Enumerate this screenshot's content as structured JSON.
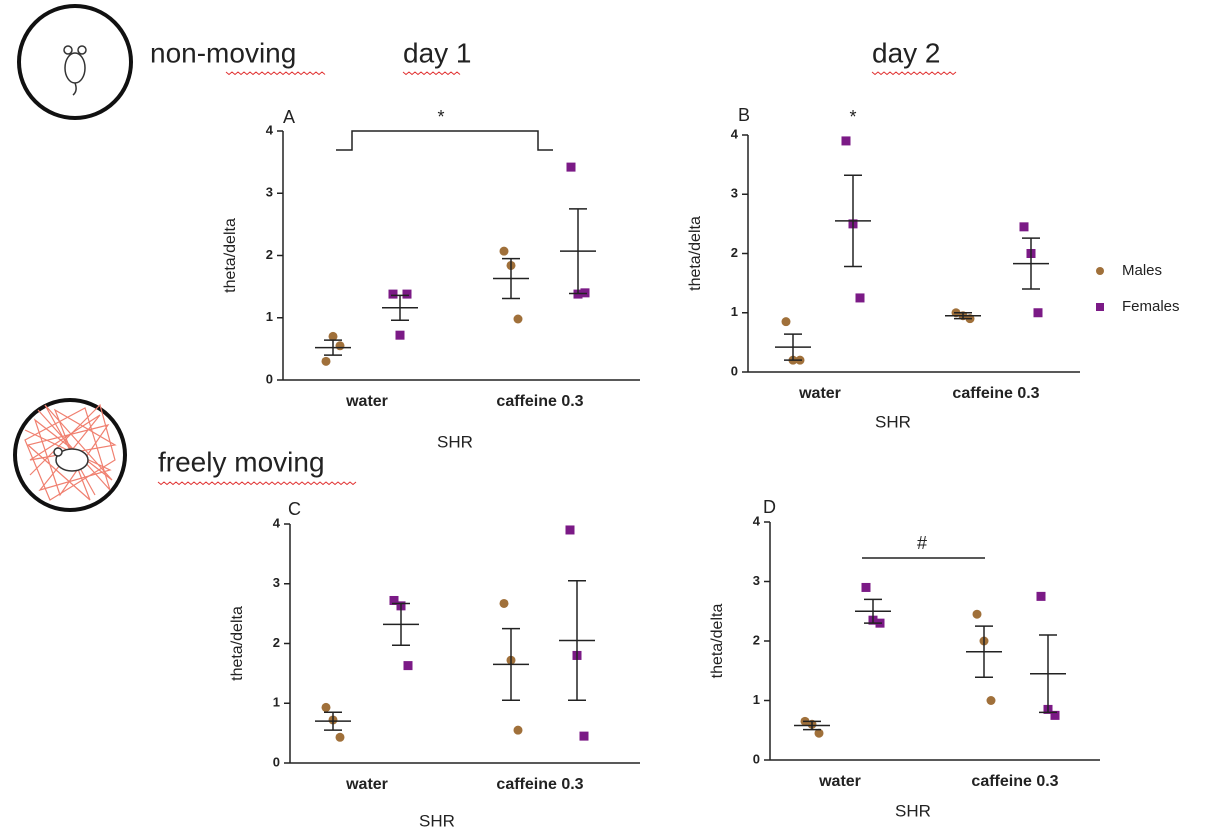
{
  "header": {
    "non_moving": "non-moving",
    "day1": "day 1",
    "day2": "day 2",
    "freely_moving": "freely moving"
  },
  "legend": [
    {
      "name": "Males",
      "color": "#a0703a",
      "marker": "circle"
    },
    {
      "name": "Females",
      "color": "#7b1a86",
      "marker": "square"
    }
  ],
  "chart_data": [
    {
      "type": "scatter",
      "panel": "A",
      "y_label": "theta/delta",
      "x_label": "SHR",
      "annotation": "*",
      "categories": [
        "water",
        "caffeine 0.3"
      ],
      "ylim": [
        0,
        4
      ],
      "yticks": [
        0,
        1,
        2,
        3,
        4
      ],
      "series": [
        {
          "values": [
            [
              0.3,
              0.7,
              0.55
            ],
            [
              2.07,
              1.84,
              0.98
            ]
          ],
          "mean": [
            0.52,
            1.63
          ],
          "sem": [
            0.12,
            0.32
          ]
        },
        {
          "values": [
            [
              1.38,
              0.72,
              1.38
            ],
            [
              3.42,
              1.38,
              1.4
            ]
          ],
          "mean": [
            1.16,
            2.07
          ],
          "sem": [
            0.2,
            0.68
          ]
        }
      ]
    },
    {
      "type": "scatter",
      "panel": "B",
      "y_label": "theta/delta",
      "x_label": "SHR",
      "annotation": "*",
      "categories": [
        "water",
        "caffeine 0.3"
      ],
      "ylim": [
        0,
        4
      ],
      "yticks": [
        0,
        1,
        2,
        3,
        4
      ],
      "series": [
        {
          "values": [
            [
              0.85,
              0.2,
              0.2
            ],
            [
              1.0,
              0.95,
              0.9
            ]
          ],
          "mean": [
            0.42,
            0.95
          ],
          "sem": [
            0.22,
            0.05
          ]
        },
        {
          "values": [
            [
              3.9,
              2.5,
              1.25
            ],
            [
              2.45,
              2.0,
              1.0
            ]
          ],
          "mean": [
            2.55,
            1.83
          ],
          "sem": [
            0.77,
            0.43
          ]
        }
      ]
    },
    {
      "type": "scatter",
      "panel": "C",
      "y_label": "theta/delta",
      "x_label": "SHR",
      "categories": [
        "water",
        "caffeine 0.3"
      ],
      "ylim": [
        0,
        4
      ],
      "yticks": [
        0,
        1,
        2,
        3,
        4
      ],
      "series": [
        {
          "values": [
            [
              0.93,
              0.72,
              0.43
            ],
            [
              2.67,
              1.72,
              0.55
            ]
          ],
          "mean": [
            0.7,
            1.65
          ],
          "sem": [
            0.15,
            0.6
          ]
        },
        {
          "values": [
            [
              2.72,
              2.63,
              1.63
            ],
            [
              3.9,
              1.8,
              0.45
            ]
          ],
          "mean": [
            2.32,
            2.05
          ],
          "sem": [
            0.35,
            1.0
          ]
        }
      ]
    },
    {
      "type": "scatter",
      "panel": "D",
      "y_label": "theta/delta",
      "x_label": "SHR",
      "annotation": "#",
      "categories": [
        "water",
        "caffeine 0.3"
      ],
      "ylim": [
        0,
        4
      ],
      "yticks": [
        0,
        1,
        2,
        3,
        4
      ],
      "series": [
        {
          "values": [
            [
              0.65,
              0.6,
              0.45
            ],
            [
              2.45,
              2.0,
              1.0
            ]
          ],
          "mean": [
            0.58,
            1.82
          ],
          "sem": [
            0.07,
            0.43
          ]
        },
        {
          "values": [
            [
              2.9,
              2.35,
              2.3
            ],
            [
              2.75,
              0.85,
              0.75
            ]
          ],
          "mean": [
            2.5,
            1.45
          ],
          "sem": [
            0.2,
            0.65
          ]
        }
      ]
    }
  ]
}
